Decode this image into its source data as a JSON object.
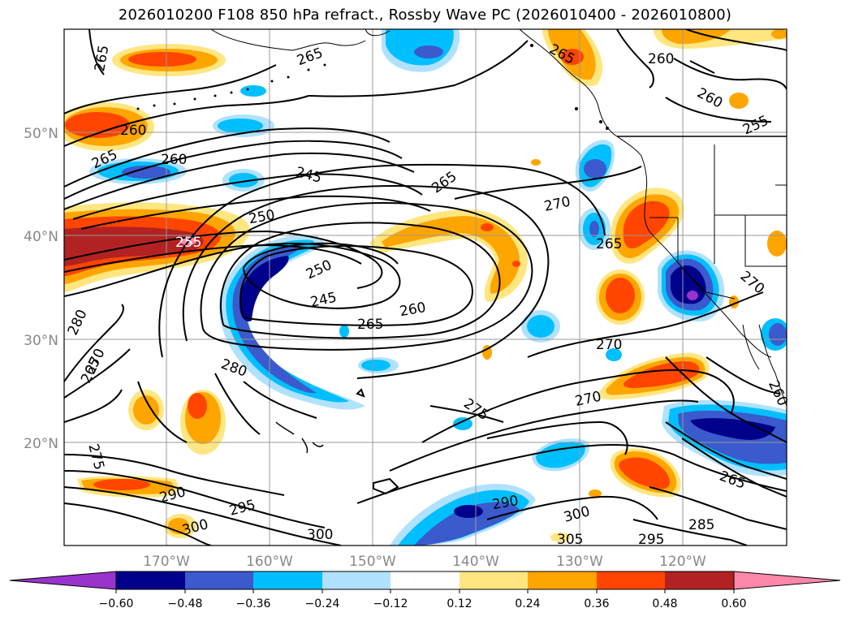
{
  "title": "2026010200 F108 850 hPa refract., Rossby Wave PC (2026010400 - 2026010800)",
  "lat_labels": [
    "50°N",
    "40°N",
    "30°N",
    "20°N"
  ],
  "lon_labels": [
    "170°W",
    "160°W",
    "150°W",
    "140°W",
    "130°W",
    "120°W"
  ],
  "colorbar": {
    "ticks": [
      "−0.60",
      "−0.48",
      "−0.36",
      "−0.24",
      "−0.12",
      "0.12",
      "0.24",
      "0.36",
      "0.48",
      "0.60"
    ],
    "colors": [
      "#9933cc",
      "#00008b",
      "#3a5acd",
      "#00bfff",
      "#b0e2ff",
      "#ffffff",
      "#ffe680",
      "#ffa500",
      "#ff4500",
      "#b22222",
      "#ff88aa"
    ]
  },
  "contour_labels": [
    {
      "text": "265"
    },
    {
      "text": "265"
    },
    {
      "text": "265"
    },
    {
      "text": "260"
    },
    {
      "text": "260"
    },
    {
      "text": "260"
    },
    {
      "text": "255"
    },
    {
      "text": "265"
    },
    {
      "text": "260"
    },
    {
      "text": "245"
    },
    {
      "text": "265"
    },
    {
      "text": "270"
    },
    {
      "text": "250"
    },
    {
      "text": "255"
    },
    {
      "text": "265"
    },
    {
      "text": "250"
    },
    {
      "text": "245"
    },
    {
      "text": "260"
    },
    {
      "text": "265"
    },
    {
      "text": "270"
    },
    {
      "text": "270"
    },
    {
      "text": "280"
    },
    {
      "text": "270"
    },
    {
      "text": "265"
    },
    {
      "text": "270"
    },
    {
      "text": "280"
    },
    {
      "text": "275"
    },
    {
      "text": "260"
    },
    {
      "text": "275"
    },
    {
      "text": "265"
    },
    {
      "text": "290"
    },
    {
      "text": "295"
    },
    {
      "text": "300"
    },
    {
      "text": "290"
    },
    {
      "text": "300"
    },
    {
      "text": "300"
    },
    {
      "text": "305"
    },
    {
      "text": "295"
    },
    {
      "text": "285"
    },
    {
      "text": "255"
    }
  ]
}
